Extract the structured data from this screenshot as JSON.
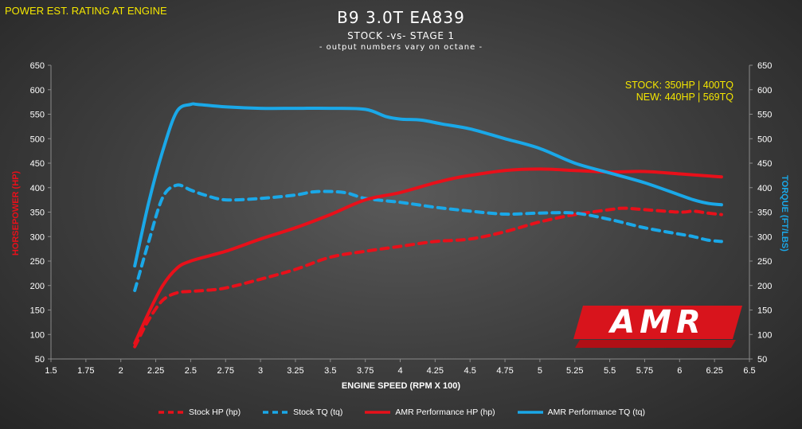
{
  "header": {
    "corner_label": "POWER EST. RATING AT ENGINE",
    "title": "B9 3.0T EA839",
    "subtitle": "STOCK -vs- STAGE 1",
    "note": "- output numbers vary on octane -"
  },
  "summary": {
    "stock": "STOCK: 350HP | 400TQ",
    "new": "NEW: 440HP | 569TQ"
  },
  "logo": {
    "text": "AMR",
    "tagline": "AUTOMOTIVE PERFORMANCE SOLUTIONS"
  },
  "colors": {
    "hp": "#e8101a",
    "tq": "#1aa8e8",
    "yellow": "#f4e600",
    "text": "#ffffff"
  },
  "chart_data": {
    "type": "line",
    "title": "B9 3.0T EA839",
    "xlabel": "ENGINE SPEED (RPM X 100)",
    "ylabel": "HORSEPOWER (HP)",
    "y2label": "TORQUE (FT/LBS)",
    "xlim": [
      1.5,
      6.5
    ],
    "ylim": [
      50,
      650
    ],
    "y2lim": [
      50,
      650
    ],
    "x_ticks": [
      "1.5",
      "1.75",
      "2",
      "2.25",
      "2.5",
      "2.75",
      "3",
      "3.25",
      "3.5",
      "3.75",
      "4",
      "4.25",
      "4.5",
      "4.75",
      "5",
      "5.25",
      "5.5",
      "5.75",
      "6",
      "6.25",
      "6.5"
    ],
    "y_ticks": [
      "50",
      "100",
      "150",
      "200",
      "250",
      "300",
      "350",
      "400",
      "450",
      "500",
      "550",
      "600",
      "650"
    ],
    "grid": false,
    "legend_position": "bottom",
    "series": [
      {
        "name": "Stock HP (hp)",
        "color": "#e8101a",
        "dashed": true,
        "axis": "left",
        "x": [
          2.1,
          2.2,
          2.3,
          2.4,
          2.5,
          2.6,
          2.75,
          3.0,
          3.25,
          3.5,
          3.75,
          4.0,
          4.25,
          4.5,
          4.75,
          5.0,
          5.25,
          5.5,
          5.6,
          5.75,
          6.0,
          6.1,
          6.2,
          6.3
        ],
        "y": [
          75,
          130,
          170,
          185,
          188,
          190,
          195,
          213,
          233,
          258,
          270,
          280,
          290,
          295,
          310,
          330,
          345,
          355,
          358,
          355,
          350,
          352,
          348,
          345
        ]
      },
      {
        "name": "Stock TQ (tq)",
        "color": "#1aa8e8",
        "dashed": true,
        "axis": "right",
        "x": [
          2.1,
          2.2,
          2.3,
          2.4,
          2.5,
          2.6,
          2.75,
          3.0,
          3.25,
          3.4,
          3.6,
          3.75,
          4.0,
          4.25,
          4.5,
          4.75,
          5.0,
          5.25,
          5.5,
          5.75,
          6.0,
          6.1,
          6.2,
          6.3
        ],
        "y": [
          190,
          290,
          380,
          405,
          395,
          385,
          375,
          378,
          385,
          392,
          390,
          378,
          370,
          360,
          352,
          346,
          348,
          348,
          335,
          318,
          305,
          300,
          293,
          290
        ]
      },
      {
        "name": "AMR Performance HP (hp)",
        "color": "#e8101a",
        "dashed": false,
        "axis": "left",
        "x": [
          2.1,
          2.2,
          2.3,
          2.4,
          2.5,
          2.75,
          3.0,
          3.25,
          3.5,
          3.75,
          4.0,
          4.25,
          4.4,
          4.5,
          4.75,
          5.0,
          5.25,
          5.5,
          5.75,
          6.0,
          6.1,
          6.2,
          6.3
        ],
        "y": [
          82,
          145,
          200,
          235,
          250,
          270,
          295,
          318,
          345,
          375,
          390,
          410,
          420,
          425,
          435,
          438,
          435,
          432,
          433,
          428,
          426,
          424,
          422
        ]
      },
      {
        "name": "AMR Performance TQ (tq)",
        "color": "#1aa8e8",
        "dashed": false,
        "axis": "right",
        "x": [
          2.1,
          2.2,
          2.3,
          2.4,
          2.5,
          2.55,
          2.75,
          3.0,
          3.25,
          3.5,
          3.75,
          3.9,
          4.0,
          4.15,
          4.3,
          4.5,
          4.75,
          5.0,
          5.25,
          5.5,
          5.75,
          6.0,
          6.1,
          6.2,
          6.3
        ],
        "y": [
          240,
          370,
          475,
          555,
          570,
          570,
          565,
          562,
          562,
          562,
          560,
          545,
          540,
          538,
          530,
          520,
          500,
          480,
          450,
          430,
          410,
          385,
          375,
          368,
          365
        ]
      }
    ]
  }
}
